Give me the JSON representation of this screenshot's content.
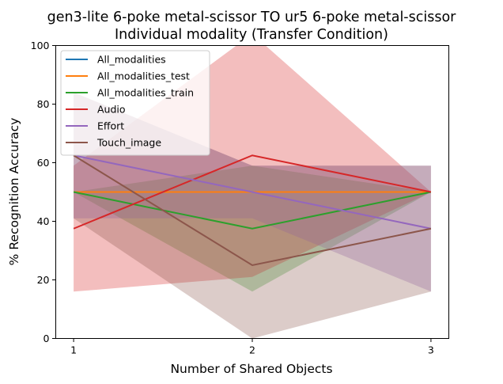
{
  "chart_data": {
    "type": "line",
    "title": "gen3-lite 6-poke metal-scissor TO ur5 6-poke metal-scissor",
    "subtitle": "Individual modality (Transfer Condition)",
    "xlabel": "Number of Shared Objects",
    "ylabel": "% Recognition Accuracy",
    "x": [
      1,
      2,
      3
    ],
    "xticks": [
      "1",
      "2",
      "3"
    ],
    "ylim": [
      0,
      100
    ],
    "yticks": [
      "0",
      "20",
      "40",
      "60",
      "80",
      "100"
    ],
    "grid": false,
    "legend_position": "top-left",
    "series": [
      {
        "name": "All_modalities",
        "color": "#1f77b4",
        "values": [
          50,
          50,
          50
        ],
        "band": null
      },
      {
        "name": "All_modalities_test",
        "color": "#ff7f0e",
        "values": [
          50,
          50,
          50
        ],
        "band": null
      },
      {
        "name": "All_modalities_train",
        "color": "#2ca02c",
        "values": [
          50,
          37.5,
          50
        ],
        "band": {
          "lower": [
            50,
            16,
            50
          ],
          "upper": [
            50,
            59,
            50
          ]
        }
      },
      {
        "name": "Audio",
        "color": "#d62728",
        "values": [
          37.5,
          62.5,
          50
        ],
        "band": {
          "lower": [
            16,
            21,
            50
          ],
          "upper": [
            59,
            104,
            50
          ]
        }
      },
      {
        "name": "Effort",
        "color": "#9467bd",
        "values": [
          62.5,
          50,
          37.5
        ],
        "band": {
          "lower": [
            41,
            41,
            16
          ],
          "upper": [
            84,
            59,
            59
          ]
        }
      },
      {
        "name": "Touch_image",
        "color": "#8c564b",
        "values": [
          62.5,
          25,
          37.5
        ],
        "band": {
          "lower": [
            41,
            0,
            16
          ],
          "upper": [
            84,
            59,
            59
          ]
        }
      }
    ]
  }
}
